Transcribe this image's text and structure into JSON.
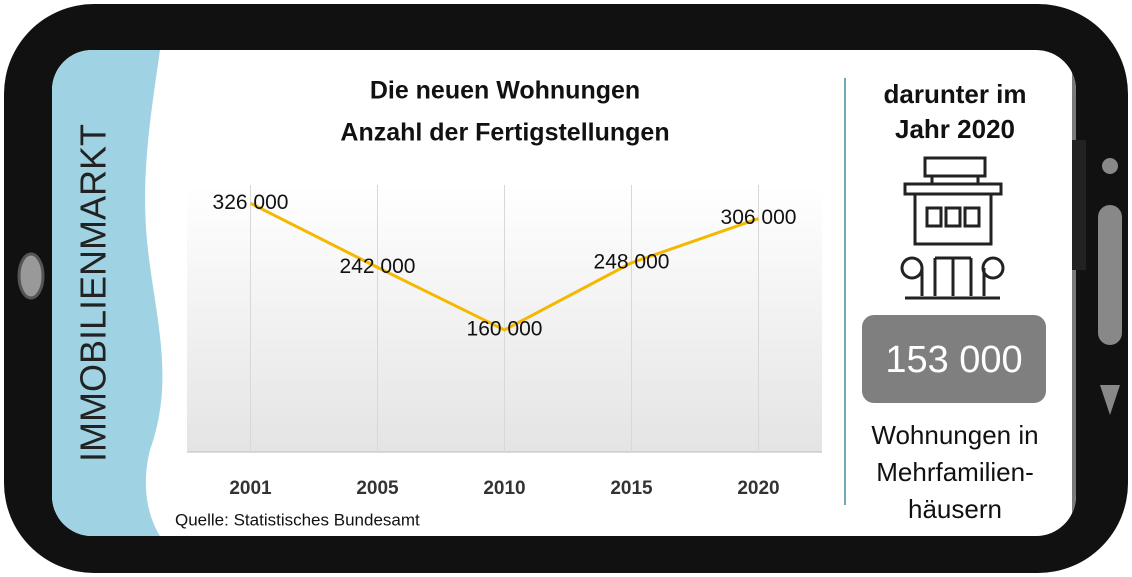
{
  "chart_data": {
    "type": "line",
    "title": "Die neuen Wohnungen",
    "subtitle": "Anzahl der Fertigstellungen",
    "categories": [
      "2001",
      "2005",
      "2010",
      "2015",
      "2020"
    ],
    "values": [
      326000,
      242000,
      160000,
      248000,
      306000
    ],
    "value_labels": [
      "326 000",
      "242 000",
      "160 000",
      "248 000",
      "306 000"
    ],
    "color": "#f5b800",
    "ylim": [
      0,
      350000
    ],
    "grid": true,
    "source": "Quelle: Statistisches Bundesamt"
  },
  "banner": "IMMOBILIENMARKT",
  "side_panel": {
    "heading": [
      "darunter im",
      "Jahr 2020"
    ],
    "number": "153 000",
    "caption": [
      "Wohnungen in",
      "Mehrfamilien-",
      "häusern"
    ]
  }
}
